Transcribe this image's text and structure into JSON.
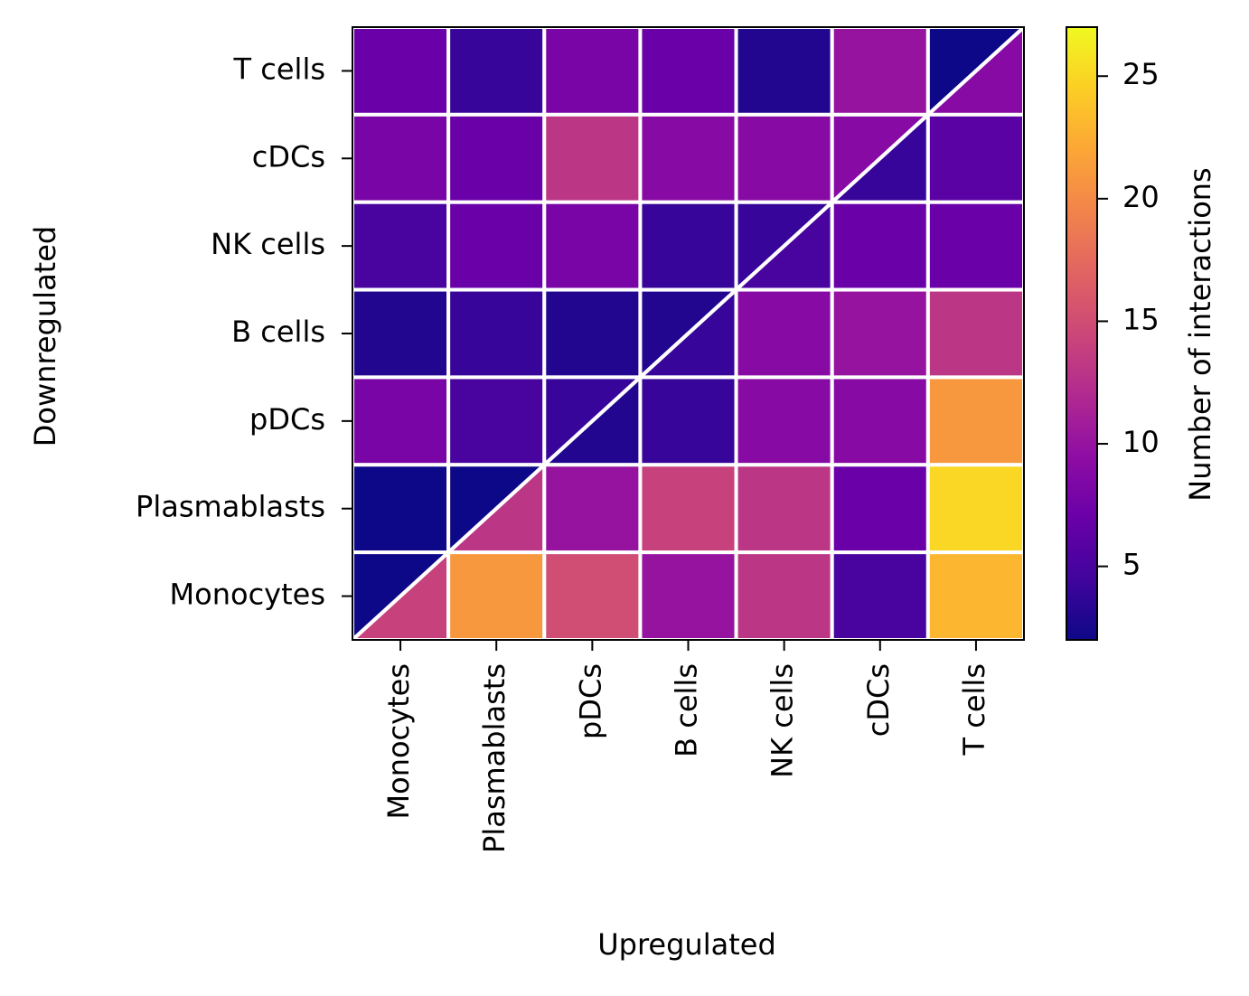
{
  "chart_data": {
    "type": "heatmap",
    "xlabel": "Upregulated",
    "ylabel": "Downregulated",
    "x_categories": [
      "Monocytes",
      "Plasmablasts",
      "pDCs",
      "B cells",
      "NK cells",
      "cDCs",
      "T cells"
    ],
    "y_categories": [
      "T cells",
      "cDCs",
      "NK cells",
      "B cells",
      "pDCs",
      "Plasmablasts",
      "Monocytes"
    ],
    "values": [
      [
        7,
        4,
        8,
        7,
        3,
        10,
        2
      ],
      [
        8,
        7,
        13,
        9,
        9,
        9,
        6
      ],
      [
        5,
        7,
        8,
        4,
        4,
        7,
        7
      ],
      [
        3,
        4,
        3,
        3,
        9,
        10,
        13
      ],
      [
        8,
        5,
        4,
        4,
        9,
        9,
        21
      ],
      [
        2,
        2,
        10,
        14,
        13,
        7,
        25
      ],
      [
        2,
        21,
        15,
        10,
        13,
        5,
        23
      ]
    ],
    "diagonal_lower": [
      9,
      4,
      5,
      4,
      3,
      13,
      14
    ],
    "colormap": "plasma",
    "colorbar_label": "Number of interactions",
    "vlim": [
      2,
      27
    ],
    "colorbar_ticks": [
      5,
      10,
      15,
      20,
      25
    ]
  }
}
